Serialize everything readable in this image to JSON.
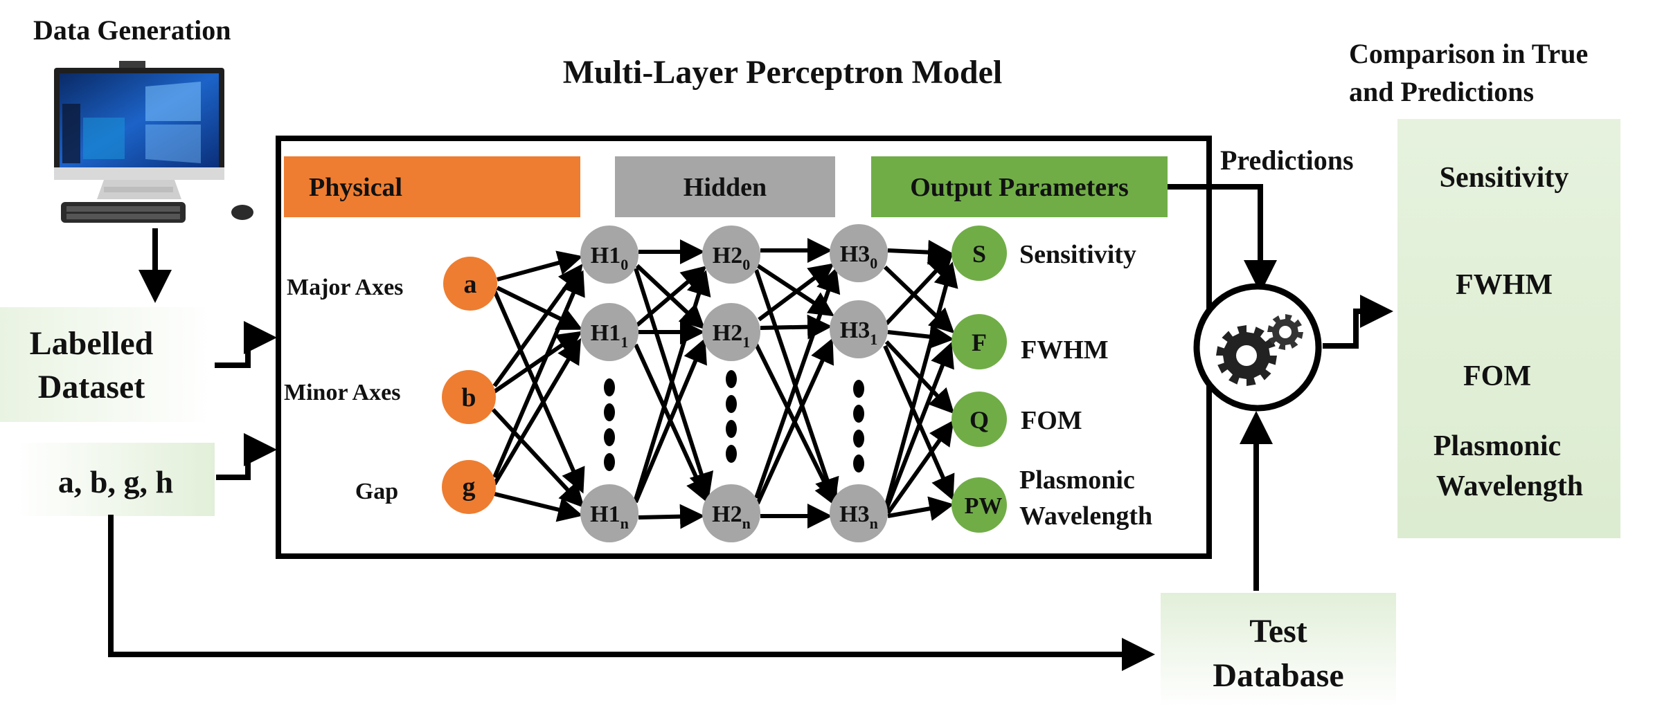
{
  "headings": {
    "data_generation": "Data Generation",
    "model_title": "Multi-Layer Perceptron Model",
    "comparison_line1": "Comparison in True",
    "comparison_line2": "and Predictions",
    "predictions": "Predictions"
  },
  "left_boxes": {
    "labelled_line1": "Labelled",
    "labelled_line2": "Dataset",
    "params": "a, b, g, h"
  },
  "test_box": {
    "line1": "Test",
    "line2": "Database"
  },
  "header_bars": {
    "physical": "Physical",
    "hidden": "Hidden",
    "output": "Output Parameters"
  },
  "inputs": [
    {
      "label": "Major Axes",
      "symbol": "a"
    },
    {
      "label": "Minor Axes",
      "symbol": "b"
    },
    {
      "label": "Gap",
      "symbol": "g"
    }
  ],
  "hidden_layers": [
    {
      "prefix": "H1",
      "subs": [
        "0",
        "1",
        "n"
      ]
    },
    {
      "prefix": "H2",
      "subs": [
        "0",
        "1",
        "n"
      ]
    },
    {
      "prefix": "H3",
      "subs": [
        "0",
        "1",
        "n"
      ]
    }
  ],
  "outputs": [
    {
      "symbol": "S",
      "label": "Sensitivity"
    },
    {
      "symbol": "F",
      "label": "FWHM"
    },
    {
      "symbol": "Q",
      "label": "FOM"
    },
    {
      "symbol": "PW",
      "label_line1": "Plasmonic",
      "label_line2": "Wavelength"
    }
  ],
  "comparison": {
    "item1": "Sensitivity",
    "item2": "FWHM",
    "item3": "FOM",
    "item4_line1": "Plasmonic",
    "item4_line2": "Wavelength"
  },
  "colors": {
    "orange": "#ee7d31",
    "gray": "#a6a6a6",
    "green": "#70ad47",
    "light_green_box": "#e2efd9",
    "line": "#000000"
  }
}
